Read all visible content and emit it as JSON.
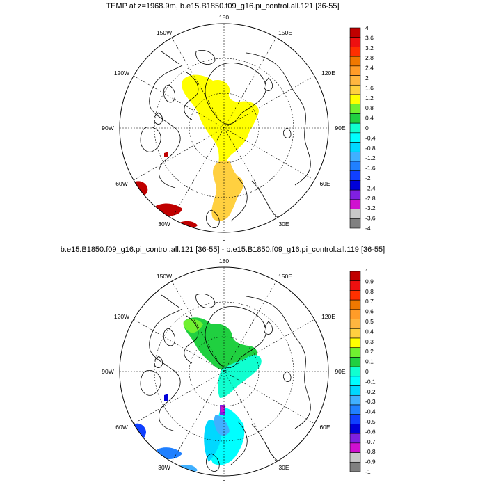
{
  "panels": [
    {
      "title": "TEMP at z=1968.9m, b.e15.B1850.f09_g16.pi_control.all.121 [36-55]",
      "labels": [
        "180",
        "150E",
        "120E",
        "90E",
        "60E",
        "30E",
        "0",
        "30W",
        "60W",
        "90W",
        "120W",
        "150W"
      ],
      "colorbar": {
        "ticks": [
          "4",
          "3.6",
          "3.2",
          "2.8",
          "2.4",
          "2",
          "1.6",
          "1.2",
          "0.8",
          "0.4",
          "0",
          "-0.4",
          "-0.8",
          "-1.2",
          "-1.6",
          "-2",
          "-2.4",
          "-2.8",
          "-3.2",
          "-3.6",
          "-4"
        ],
        "colors": [
          "#c00000",
          "#ee1010",
          "#ff3000",
          "#f07800",
          "#ff9c28",
          "#ffb640",
          "#ffd040",
          "#ffff00",
          "#70f030",
          "#20d040",
          "#10ffd0",
          "#00ffff",
          "#00d8ff",
          "#40b0ff",
          "#2080ff",
          "#1040ff",
          "#0000d8",
          "#8020e0",
          "#d010d0",
          "#c8c8c8",
          "#808080"
        ]
      }
    },
    {
      "title": "b.e15.B1850.f09_g16.pi_control.all.121 [36-55] - b.e15.B1850.f09_g16.pi_control.all.119 [36-55]",
      "labels": [
        "180",
        "150E",
        "120E",
        "90E",
        "60E",
        "30E",
        "0",
        "30W",
        "60W",
        "90W",
        "120W",
        "150W"
      ],
      "colorbar": {
        "ticks": [
          "1",
          "0.9",
          "0.8",
          "0.7",
          "0.6",
          "0.5",
          "0.4",
          "0.3",
          "0.2",
          "0.1",
          "0",
          "-0.1",
          "-0.2",
          "-0.3",
          "-0.4",
          "-0.5",
          "-0.6",
          "-0.7",
          "-0.8",
          "-0.9",
          "-1"
        ],
        "colors": [
          "#c00000",
          "#ee1010",
          "#ff3000",
          "#f07800",
          "#ff9c28",
          "#ffb640",
          "#ffd040",
          "#ffff00",
          "#70f030",
          "#20d040",
          "#10ffd0",
          "#00ffff",
          "#00d8ff",
          "#40b0ff",
          "#2080ff",
          "#1040ff",
          "#0000d8",
          "#8020e0",
          "#d010d0",
          "#c8c8c8",
          "#808080"
        ]
      }
    }
  ]
}
